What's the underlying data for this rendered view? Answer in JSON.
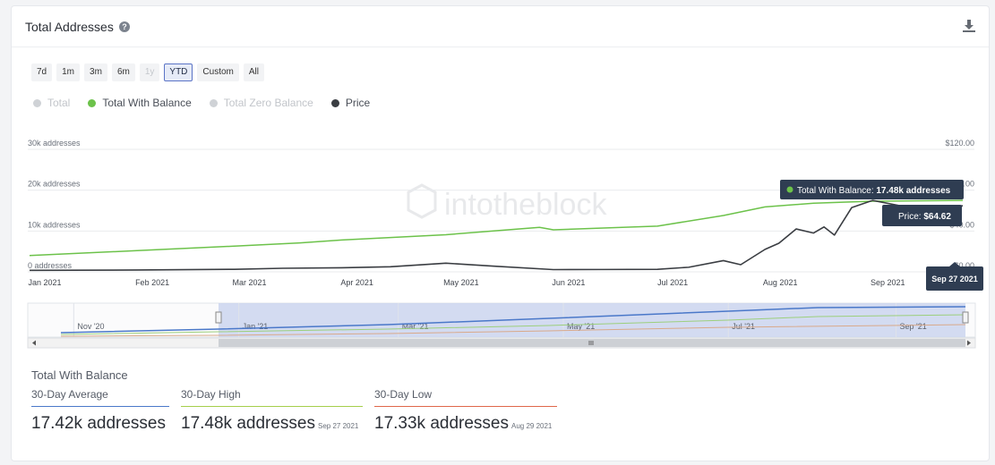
{
  "header": {
    "title": "Total Addresses",
    "help_icon": "?",
    "download_icon": "download-icon"
  },
  "ranges": [
    {
      "label": "7d",
      "state": "normal"
    },
    {
      "label": "1m",
      "state": "normal"
    },
    {
      "label": "3m",
      "state": "normal"
    },
    {
      "label": "6m",
      "state": "normal"
    },
    {
      "label": "1y",
      "state": "disabled"
    },
    {
      "label": "YTD",
      "state": "active"
    },
    {
      "label": "Custom",
      "state": "normal"
    },
    {
      "label": "All",
      "state": "normal"
    }
  ],
  "legend": [
    {
      "label": "Total",
      "color": "#cfd2d6",
      "active": false
    },
    {
      "label": "Total With Balance",
      "color": "#6cc24a",
      "active": true
    },
    {
      "label": "Total Zero Balance",
      "color": "#cfd2d6",
      "active": false
    },
    {
      "label": "Price",
      "color": "#3a3d42",
      "active": true
    }
  ],
  "chart_data": {
    "type": "line",
    "watermark": "intotheblock",
    "x_ticks": [
      "Jan 2021",
      "Feb 2021",
      "Mar 2021",
      "Apr 2021",
      "May 2021",
      "Jun 2021",
      "Jul 2021",
      "Aug 2021",
      "Sep 2021"
    ],
    "y_left_ticks": [
      "0 addresses",
      "10k addresses",
      "20k addresses",
      "30k addresses"
    ],
    "y_left_range": [
      0,
      30000
    ],
    "y_right_ticks": [
      "$0.00",
      "$40.00",
      "$80.00",
      "$120.00"
    ],
    "y_right_range": [
      0,
      120
    ],
    "series": [
      {
        "name": "Total With Balance",
        "axis": "left",
        "color": "#6cc24a",
        "x": [
          "2021-01-01",
          "2021-02-01",
          "2021-03-01",
          "2021-03-20",
          "2021-04-01",
          "2021-05-01",
          "2021-05-28",
          "2021-06-01",
          "2021-07-01",
          "2021-07-20",
          "2021-08-01",
          "2021-08-15",
          "2021-09-01",
          "2021-09-27"
        ],
        "values": [
          4000,
          5200,
          6300,
          7100,
          7800,
          9100,
          10900,
          10300,
          11200,
          13800,
          15900,
          16800,
          17300,
          17480
        ]
      },
      {
        "name": "Price",
        "axis": "right",
        "color": "#3a3d42",
        "x": [
          "2021-01-01",
          "2021-02-01",
          "2021-03-01",
          "2021-03-15",
          "2021-04-01",
          "2021-04-15",
          "2021-05-01",
          "2021-05-15",
          "2021-06-01",
          "2021-06-15",
          "2021-07-01",
          "2021-07-10",
          "2021-07-20",
          "2021-07-25",
          "2021-08-01",
          "2021-08-05",
          "2021-08-10",
          "2021-08-15",
          "2021-08-18",
          "2021-08-21",
          "2021-08-26",
          "2021-09-01",
          "2021-09-10",
          "2021-09-27"
        ],
        "values": [
          1.5,
          1.8,
          2.5,
          3.5,
          4.0,
          5.0,
          8.5,
          5.5,
          2.2,
          2.3,
          2.5,
          4.5,
          11,
          7,
          22,
          28,
          42,
          38,
          44,
          36,
          63,
          70,
          64,
          64.62
        ]
      }
    ],
    "tooltip": {
      "label": "Total With Balance:",
      "value": "17.48k addresses",
      "price_label": "Price:",
      "price_value": "$64.62",
      "date": "Sep 27 2021"
    },
    "navigator_ticks": [
      "Nov '20",
      "Jan '21",
      "Mar '21",
      "May '21",
      "Jul '21",
      "Sep '21"
    ]
  },
  "stats": {
    "title": "Total With Balance",
    "items": [
      {
        "label": "30-Day Average",
        "value": "17.42k addresses",
        "date": "",
        "color": "#4a78c9"
      },
      {
        "label": "30-Day High",
        "value": "17.48k addresses",
        "date": "Sep 27 2021",
        "color": "#a5cf4c"
      },
      {
        "label": "30-Day Low",
        "value": "17.33k addresses",
        "date": "Aug 29 2021",
        "color": "#e0674a"
      }
    ]
  }
}
